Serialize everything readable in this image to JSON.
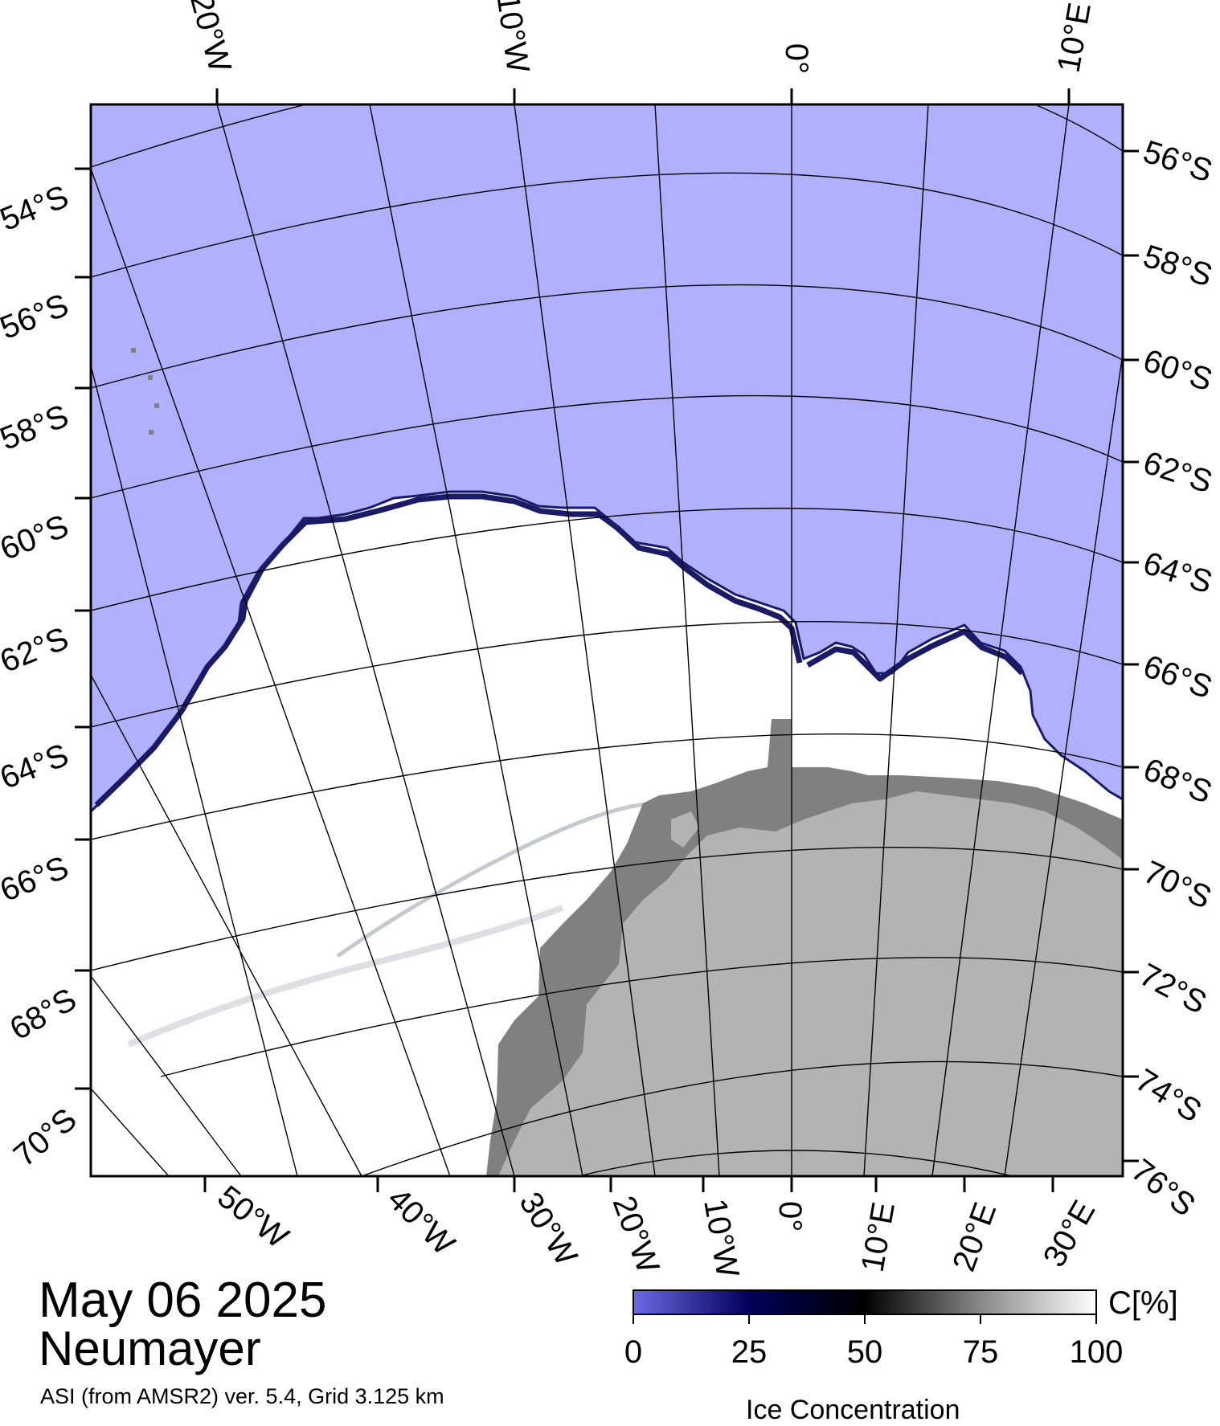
{
  "map": {
    "date": "May 06 2025",
    "station": "Neumayer",
    "product": "ASI (from AMSR2) ver. 5.4,  Grid 3.125 km",
    "colors": {
      "ocean": "#b0b0ff",
      "sea_ice": "#ffffff",
      "ice_edge": "#1a1a66",
      "land_ice_shelf": "#808080",
      "land_interior": "#b3b3b3",
      "graticule": "#000000"
    },
    "top_lon_labels": [
      "20°W",
      "10°W",
      "0°",
      "10°E"
    ],
    "bottom_lon_labels": [
      "50°W",
      "40°W",
      "30°W",
      "20°W",
      "10°W",
      "0°",
      "10°E",
      "20°E",
      "30°E"
    ],
    "left_lat_labels": [
      "54°S",
      "56°S",
      "58°S",
      "60°S",
      "62°S",
      "64°S",
      "66°S",
      "68°S",
      "70°S"
    ],
    "right_lat_labels": [
      "56°S",
      "58°S",
      "60°S",
      "62°S",
      "64°S",
      "66°S",
      "68°S",
      "70°S",
      "72°S",
      "74°S",
      "76°S"
    ]
  },
  "colorbar": {
    "title": "Ice Concentration",
    "unit": "C[%]",
    "ticks": [
      "0",
      "25",
      "50",
      "75",
      "100"
    ],
    "gradient": [
      "#6a6ae6",
      "#00005a",
      "#000000",
      "#888888",
      "#ffffff"
    ]
  }
}
